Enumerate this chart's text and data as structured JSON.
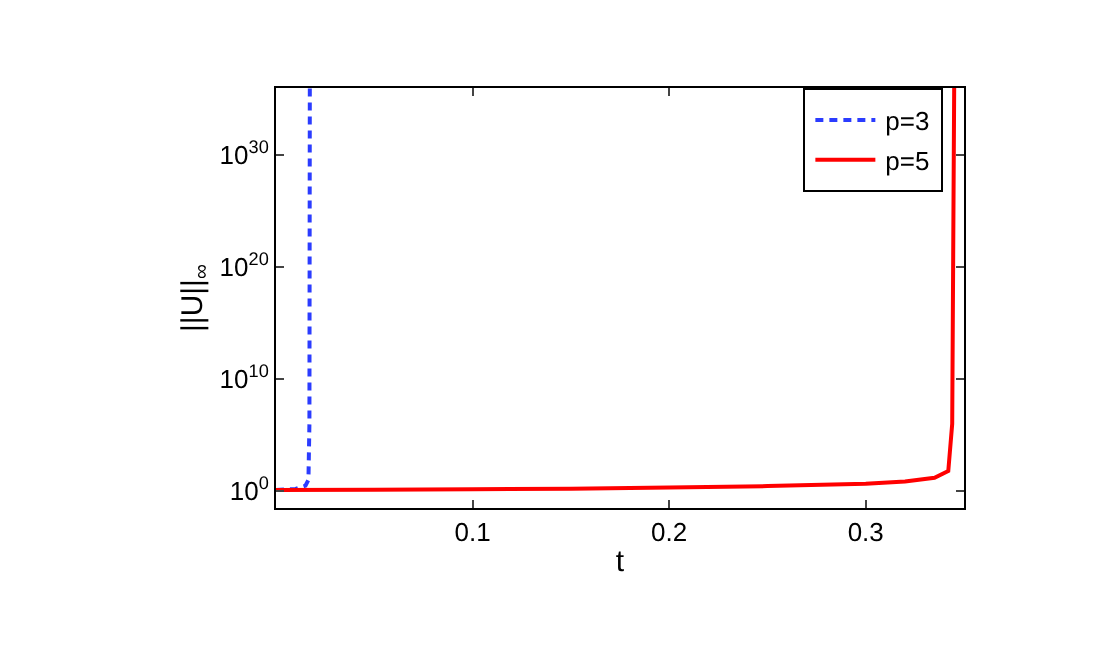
{
  "chart_data": {
    "type": "line",
    "xlabel": "t",
    "ylabel": "||U||$_{∞}$",
    "log": "y",
    "legend": "top right",
    "marker": "none",
    "xlim": [
      0,
      0.35
    ],
    "xticks": [
      0.1,
      0.2,
      0.3
    ],
    "ylim": [
      0.03,
      1e+36
    ],
    "yticks": [
      {
        "value": 1,
        "label": "10$^{0}$"
      },
      {
        "value": 10000000000.0,
        "label": "10$^{10}$"
      },
      {
        "value": 1e+20,
        "label": "10$^{20}$"
      },
      {
        "value": 1e+30,
        "label": "10$^{30}$"
      }
    ],
    "series": [
      {
        "name": "p=3",
        "color": "#2b3cff",
        "line_style": "dashed",
        "x": [
          0,
          0.01,
          0.015,
          0.0165,
          0.017,
          0.0172
        ],
        "values": [
          1.2,
          1.5,
          3,
          10,
          1000000.0,
          1e+36
        ]
      },
      {
        "name": "p=5",
        "color": "#ff0000",
        "line_style": "solid",
        "x": [
          0,
          0.05,
          0.1,
          0.15,
          0.2,
          0.25,
          0.3,
          0.32,
          0.335,
          0.342,
          0.344,
          0.345
        ],
        "values": [
          1.2,
          1.3,
          1.4,
          1.6,
          2,
          2.7,
          4.5,
          7,
          15,
          60,
          1000000.0,
          1e+36
        ]
      }
    ]
  }
}
